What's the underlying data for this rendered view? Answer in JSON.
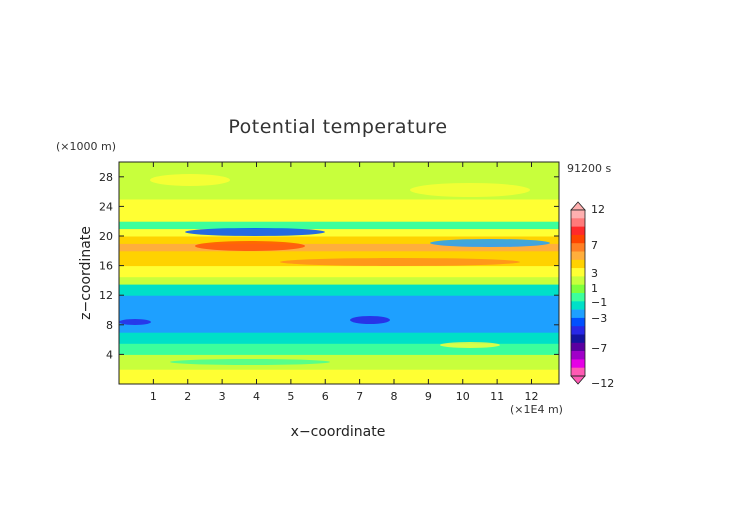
{
  "chart_data": {
    "type": "heatmap",
    "title": "Potential temperature",
    "xlabel": "x−coordinate",
    "ylabel": "z−coordinate",
    "x_unit": "(×1E4 m)",
    "y_unit": "(×1000 m)",
    "time_label": "91200 s",
    "xlim": [
      0,
      12.8
    ],
    "ylim": [
      0,
      30
    ],
    "x_ticks": [
      1,
      2,
      3,
      4,
      5,
      6,
      7,
      8,
      9,
      10,
      11,
      12
    ],
    "y_ticks": [
      4,
      8,
      12,
      16,
      20,
      24,
      28
    ],
    "colorbar": {
      "levels": [
        12,
        7,
        3,
        1,
        -1,
        -3,
        -7,
        -12
      ],
      "labels": [
        "12",
        "7",
        "3",
        "1",
        "−1",
        "−3",
        "−7",
        "−12"
      ],
      "colors": [
        "#ffb0b0",
        "#ff7a7a",
        "#ff2a2a",
        "#ff4500",
        "#ff7f24",
        "#ffae3c",
        "#ffd200",
        "#ffff33",
        "#c8ff3c",
        "#7dff3c",
        "#3cff9c",
        "#00e0c8",
        "#1ea0ff",
        "#0050ff",
        "#2828e6",
        "#1414a0",
        "#5a00a0",
        "#a000c8",
        "#e600e6",
        "#ff5ab4"
      ]
    },
    "bands": [
      {
        "z": [
          0.0,
          2.0
        ],
        "value": 0.5
      },
      {
        "z": [
          2.0,
          4.0
        ],
        "value": -0.5
      },
      {
        "z": [
          4.0,
          5.5
        ],
        "value": -1.5
      },
      {
        "z": [
          5.5,
          7.0
        ],
        "value": -2.5
      },
      {
        "z": [
          7.0,
          12.0
        ],
        "value": -3.5
      },
      {
        "z": [
          12.0,
          13.5
        ],
        "value": -2.5
      },
      {
        "z": [
          13.5,
          14.5
        ],
        "value": -0.5
      },
      {
        "z": [
          14.5,
          16.0
        ],
        "value": 0.5
      },
      {
        "z": [
          16.0,
          18.0
        ],
        "value": 1.5
      },
      {
        "z": [
          18.0,
          19.0
        ],
        "value": 2.5
      },
      {
        "z": [
          19.0,
          20.0
        ],
        "value": 1.5
      },
      {
        "z": [
          20.0,
          21.0
        ],
        "value": 0.5
      },
      {
        "z": [
          21.0,
          22.0
        ],
        "value": -1.5
      },
      {
        "z": [
          22.0,
          25.0
        ],
        "value": 0.5
      },
      {
        "z": [
          25.0,
          27.0
        ],
        "value": -0.5
      },
      {
        "z": [
          27.0,
          30.0
        ],
        "value": -1.0
      }
    ]
  }
}
